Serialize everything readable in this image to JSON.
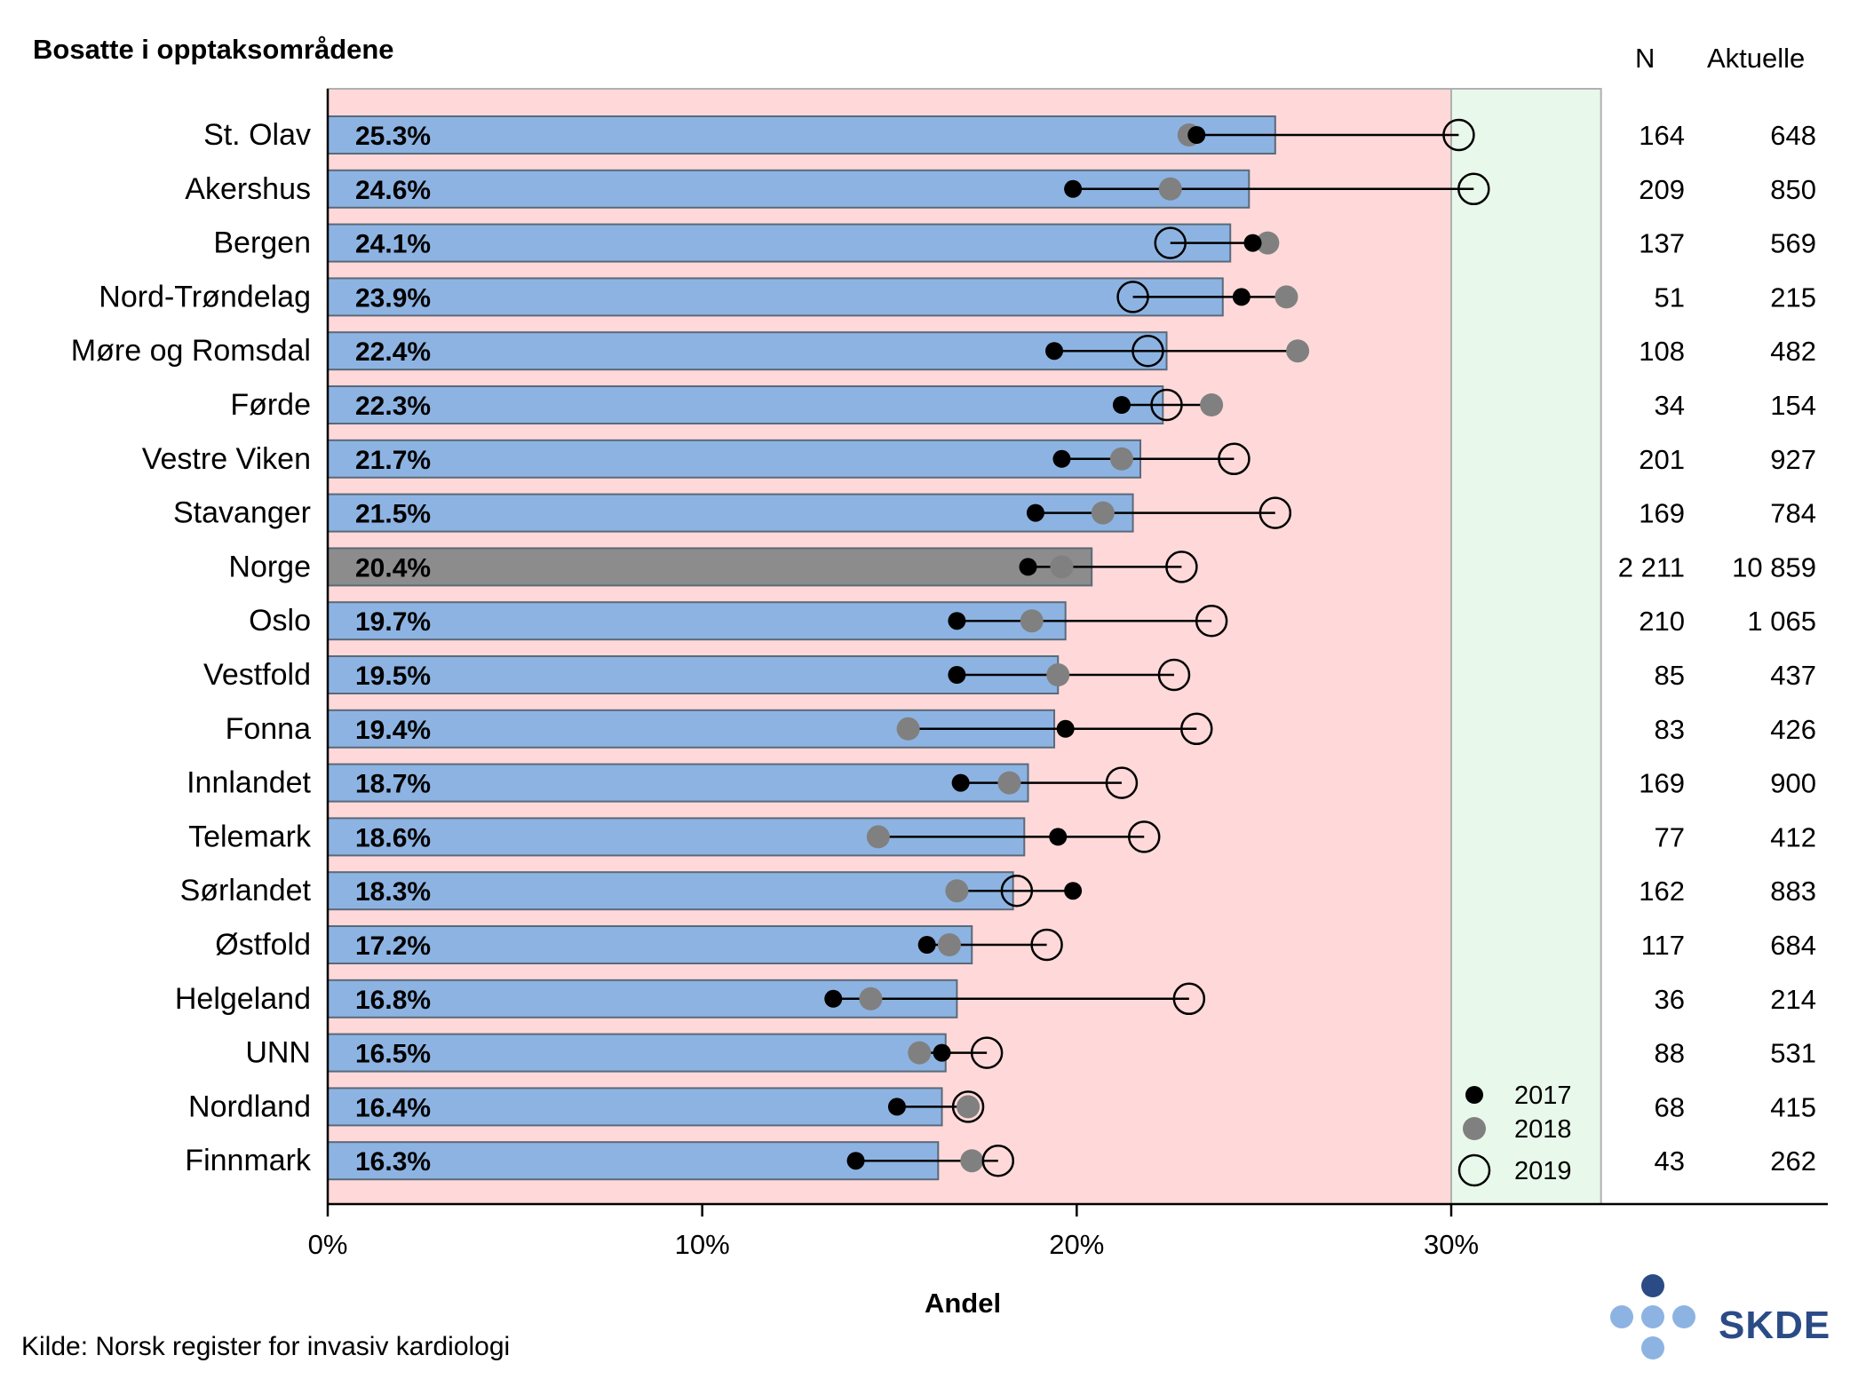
{
  "title": "Bosatte i opptaksområdene",
  "columns": {
    "n_label": "N",
    "aktuelle_label": "Aktuelle"
  },
  "source": "Kilde: Norsk register for invasiv kardiologi",
  "logo": {
    "text": "SKDE",
    "color": "#2b4b86",
    "dot_color": "#8db3e2"
  },
  "colors": {
    "bar": "#8db3e2",
    "bar_highlight": "#8c8c8c",
    "bar_border": "#5a6a7a",
    "bg_red_zone": "#ffd9d9",
    "bg_green_zone": "#e8f8ea",
    "dot_2017": "#000000",
    "dot_2018": "#808080"
  },
  "chart_data": {
    "type": "bar",
    "orientation": "horizontal",
    "xlabel": "Andel",
    "xlim": [
      0,
      0.39
    ],
    "xticks": [
      0,
      0.1,
      0.2,
      0.3
    ],
    "xtick_labels": [
      "0%",
      "10%",
      "20%",
      "30%"
    ],
    "target_zones": [
      {
        "from": 0,
        "to": 0.3,
        "color": "red"
      },
      {
        "from": 0.3,
        "to": 0.34,
        "color": "green"
      }
    ],
    "legend": {
      "placement": "bottom-right",
      "entries": [
        "2017",
        "2018",
        "2019"
      ]
    },
    "categories": [
      "St. Olav",
      "Akershus",
      "Bergen",
      "Nord-Trøndelag",
      "Møre og Romsdal",
      "Førde",
      "Vestre Viken",
      "Stavanger",
      "Norge",
      "Oslo",
      "Vestfold",
      "Fonna",
      "Innlandet",
      "Telemark",
      "Sørlandet",
      "Østfold",
      "Helgeland",
      "UNN",
      "Nordland",
      "Finnmark"
    ],
    "highlight": "Norge",
    "bar_values": [
      0.253,
      0.246,
      0.241,
      0.239,
      0.224,
      0.223,
      0.217,
      0.215,
      0.204,
      0.197,
      0.195,
      0.194,
      0.187,
      0.186,
      0.183,
      0.172,
      0.168,
      0.165,
      0.164,
      0.163
    ],
    "bar_labels": [
      "25.3%",
      "24.6%",
      "24.1%",
      "23.9%",
      "22.4%",
      "22.3%",
      "21.7%",
      "21.5%",
      "20.4%",
      "19.7%",
      "19.5%",
      "19.4%",
      "18.7%",
      "18.6%",
      "18.3%",
      "17.2%",
      "16.8%",
      "16.5%",
      "16.4%",
      "16.3%"
    ],
    "series": [
      {
        "name": "2017",
        "values": [
          0.232,
          0.199,
          0.247,
          0.244,
          0.194,
          0.212,
          0.196,
          0.189,
          0.187,
          0.168,
          0.168,
          0.197,
          0.169,
          0.195,
          0.199,
          0.16,
          0.135,
          0.164,
          0.152,
          0.141
        ]
      },
      {
        "name": "2018",
        "values": [
          0.23,
          0.225,
          0.251,
          0.256,
          0.259,
          0.236,
          0.212,
          0.207,
          0.196,
          0.188,
          0.195,
          0.155,
          0.182,
          0.147,
          0.168,
          0.166,
          0.145,
          0.158,
          0.171,
          0.172
        ]
      },
      {
        "name": "2019",
        "values": [
          0.302,
          0.306,
          0.225,
          0.215,
          0.219,
          0.224,
          0.242,
          0.253,
          0.228,
          0.236,
          0.226,
          0.232,
          0.212,
          0.218,
          0.184,
          0.192,
          0.23,
          0.176,
          0.171,
          0.179
        ]
      }
    ],
    "n": [
      "164",
      "209",
      "137",
      "51",
      "108",
      "34",
      "201",
      "169",
      "2 211",
      "210",
      "85",
      "83",
      "169",
      "77",
      "162",
      "117",
      "36",
      "88",
      "68",
      "43"
    ],
    "aktuelle": [
      "648",
      "850",
      "569",
      "215",
      "482",
      "154",
      "927",
      "784",
      "10 859",
      "1 065",
      "437",
      "426",
      "900",
      "412",
      "883",
      "684",
      "214",
      "531",
      "415",
      "262"
    ]
  }
}
